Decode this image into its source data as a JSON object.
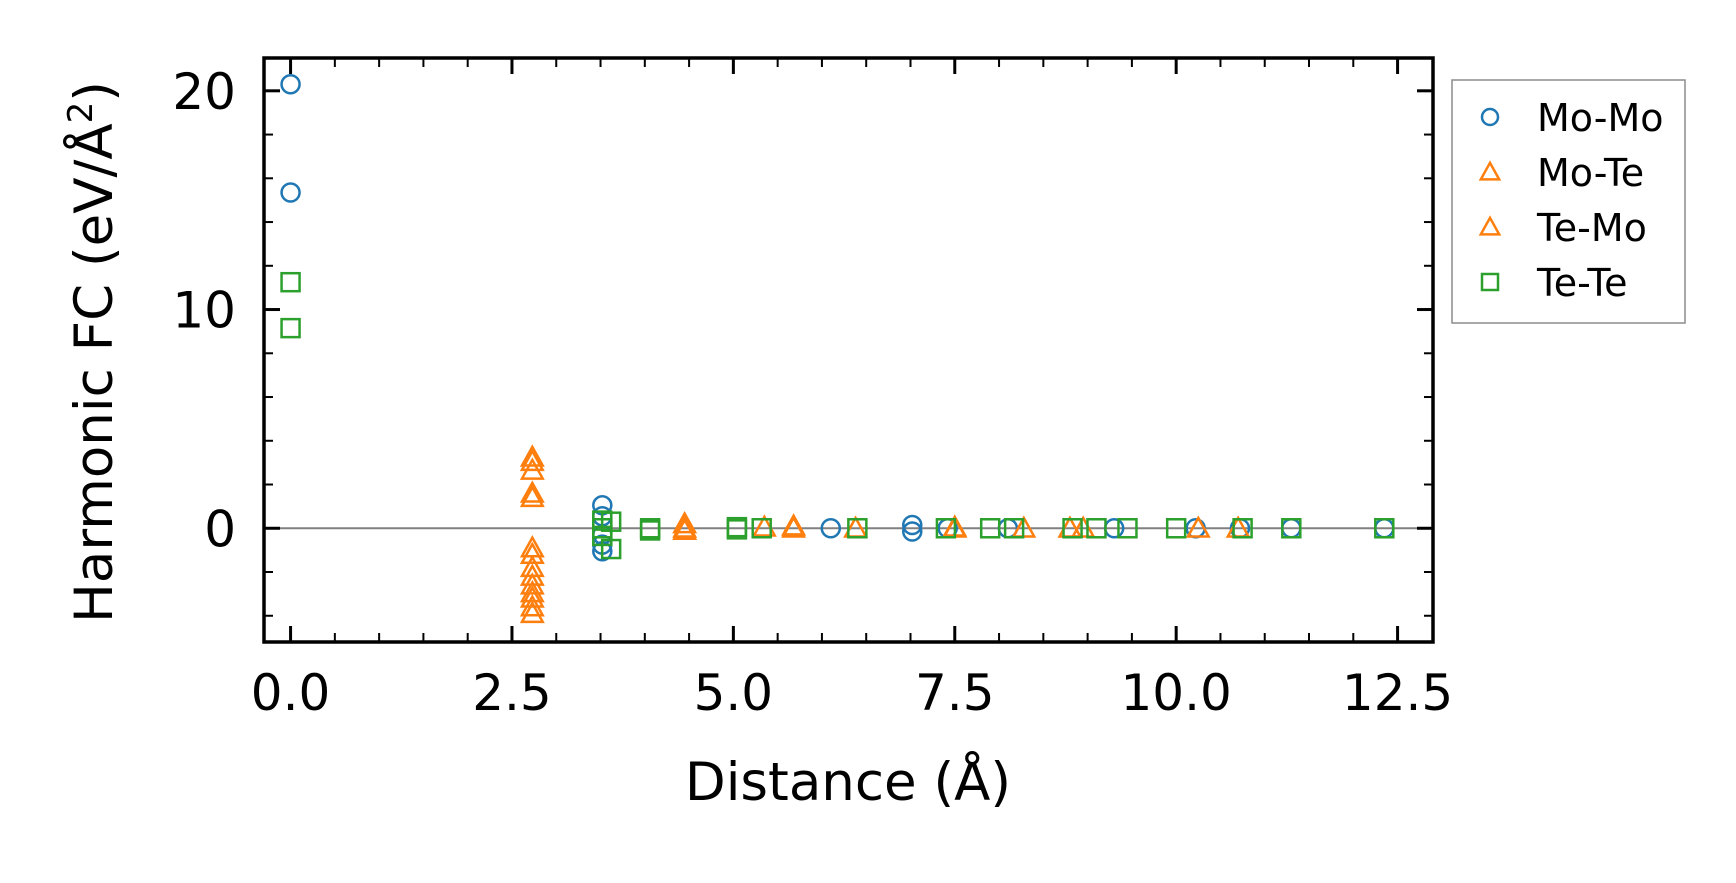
{
  "chart_data": {
    "type": "scatter",
    "title": "",
    "xlabel": "Distance (Å)",
    "ylabel_main": "Harmonic FC (eV/Å",
    "ylabel_sup": "2",
    "ylabel_close": ")",
    "xlim": [
      -0.3,
      12.9
    ],
    "ylim": [
      -5.2,
      21.5
    ],
    "xticks": [
      0.0,
      2.5,
      5.0,
      7.5,
      10.0,
      12.5
    ],
    "xtick_labels": [
      "0.0",
      "2.5",
      "5.0",
      "7.5",
      "10.0",
      "12.5"
    ],
    "yticks": [
      0,
      10,
      20
    ],
    "ytick_labels": [
      "0",
      "10",
      "20"
    ],
    "x_minor_step": 0.5,
    "y_minor_step": 2,
    "reference_line_y": 0,
    "legend_position": "outside-right-top",
    "series": [
      {
        "name": "Mo-Mo",
        "marker": "circle",
        "color": "#1f77b4",
        "points": [
          [
            0.0,
            20.3
          ],
          [
            0.0,
            15.35
          ],
          [
            3.52,
            1.05
          ],
          [
            3.52,
            0.55
          ],
          [
            3.52,
            -0.3
          ],
          [
            3.52,
            -0.75
          ],
          [
            3.52,
            -1.05
          ],
          [
            6.1,
            0.0
          ],
          [
            7.02,
            0.15
          ],
          [
            7.02,
            -0.15
          ],
          [
            7.42,
            0.0
          ],
          [
            8.1,
            0.0
          ],
          [
            9.3,
            0.0
          ],
          [
            10.22,
            0.0
          ],
          [
            10.72,
            0.0
          ],
          [
            11.3,
            0.0
          ],
          [
            12.35,
            0.0
          ]
        ]
      },
      {
        "name": "Mo-Te",
        "marker": "triangle",
        "color": "#ff7f0e",
        "points": [
          [
            2.73,
            3.05
          ],
          [
            2.73,
            2.65
          ],
          [
            2.73,
            1.6
          ],
          [
            2.73,
            -0.9
          ],
          [
            2.73,
            -1.8
          ],
          [
            2.73,
            -2.6
          ],
          [
            2.73,
            -3.2
          ],
          [
            2.73,
            -3.6
          ],
          [
            4.45,
            0.2
          ],
          [
            4.45,
            -0.1
          ],
          [
            5.35,
            0.05
          ],
          [
            5.68,
            0.0
          ],
          [
            6.38,
            0.0
          ],
          [
            7.5,
            0.0
          ],
          [
            8.28,
            0.0
          ],
          [
            8.95,
            0.0
          ],
          [
            10.25,
            0.0
          ],
          [
            10.7,
            0.0
          ]
        ]
      },
      {
        "name": "Te-Mo",
        "marker": "triangle",
        "color": "#ff7f0e",
        "points": [
          [
            2.73,
            3.25
          ],
          [
            2.73,
            1.4
          ],
          [
            2.73,
            -1.2
          ],
          [
            2.73,
            -2.2
          ],
          [
            2.73,
            -2.95
          ],
          [
            2.73,
            -3.9
          ],
          [
            4.45,
            0.0
          ],
          [
            5.68,
            0.1
          ],
          [
            7.5,
            0.05
          ],
          [
            8.8,
            0.0
          ]
        ]
      },
      {
        "name": "Te-Te",
        "marker": "square",
        "color": "#2ca02c",
        "points": [
          [
            0.0,
            11.25
          ],
          [
            0.0,
            9.15
          ],
          [
            3.52,
            0.35
          ],
          [
            3.52,
            0.0
          ],
          [
            3.52,
            -0.35
          ],
          [
            3.62,
            0.3
          ],
          [
            3.62,
            -0.95
          ],
          [
            4.06,
            0.0
          ],
          [
            4.06,
            -0.1
          ],
          [
            5.04,
            0.05
          ],
          [
            5.04,
            -0.05
          ],
          [
            5.32,
            0.0
          ],
          [
            6.4,
            0.0
          ],
          [
            7.4,
            0.0
          ],
          [
            7.9,
            0.0
          ],
          [
            8.17,
            0.0
          ],
          [
            8.83,
            0.0
          ],
          [
            9.1,
            0.0
          ],
          [
            9.45,
            0.0
          ],
          [
            10.0,
            0.0
          ],
          [
            10.75,
            0.0
          ],
          [
            11.3,
            0.0
          ],
          [
            12.35,
            0.0
          ]
        ]
      }
    ]
  }
}
